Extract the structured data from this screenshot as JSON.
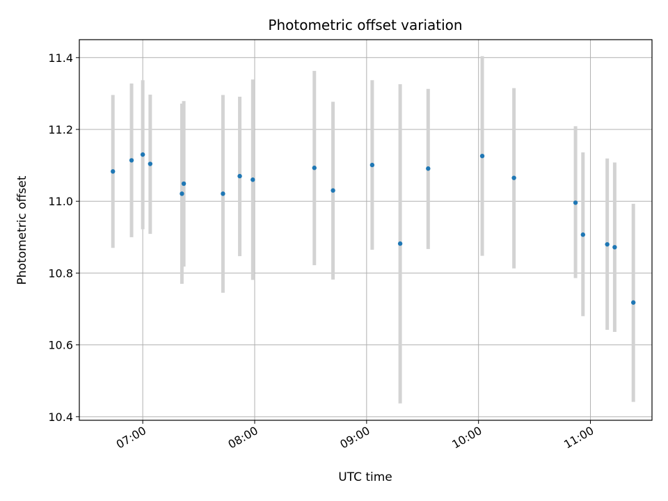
{
  "chart_data": {
    "type": "scatter",
    "title": "Photometric offset variation",
    "xlabel": "UTC time",
    "ylabel": "Photometric offset",
    "xlim": [
      "06:26",
      "11:33"
    ],
    "ylim": [
      10.39,
      11.45
    ],
    "x_ticks": [
      "07:00",
      "08:00",
      "09:00",
      "10:00",
      "11:00"
    ],
    "y_ticks": [
      10.4,
      10.6,
      10.8,
      11.0,
      11.2,
      11.4
    ],
    "y_tick_labels": [
      "10.4",
      "10.6",
      "10.8",
      "11.0",
      "11.2",
      "11.4"
    ],
    "grid": true,
    "colors": {
      "point": "#1f77b4",
      "errorbar": "#d3d3d3",
      "grid": "#b0b0b0"
    },
    "series": [
      {
        "points": [
          {
            "t": "06:44",
            "y": 11.083,
            "ylow": 10.87,
            "yhigh": 11.296
          },
          {
            "t": "06:54",
            "y": 11.114,
            "ylow": 10.9,
            "yhigh": 11.328
          },
          {
            "t": "07:00",
            "y": 11.13,
            "ylow": 10.922,
            "yhigh": 11.337
          },
          {
            "t": "07:04",
            "y": 11.104,
            "ylow": 10.909,
            "yhigh": 11.297
          },
          {
            "t": "07:21",
            "y": 11.021,
            "ylow": 10.77,
            "yhigh": 11.272
          },
          {
            "t": "07:22",
            "y": 11.049,
            "ylow": 10.818,
            "yhigh": 11.279
          },
          {
            "t": "07:43",
            "y": 11.021,
            "ylow": 10.745,
            "yhigh": 11.296
          },
          {
            "t": "07:52",
            "y": 11.07,
            "ylow": 10.847,
            "yhigh": 11.291
          },
          {
            "t": "07:59",
            "y": 11.06,
            "ylow": 10.781,
            "yhigh": 11.339
          },
          {
            "t": "08:32",
            "y": 11.093,
            "ylow": 10.822,
            "yhigh": 11.363
          },
          {
            "t": "08:42",
            "y": 11.03,
            "ylow": 10.782,
            "yhigh": 11.277
          },
          {
            "t": "09:03",
            "y": 11.101,
            "ylow": 10.865,
            "yhigh": 11.337
          },
          {
            "t": "09:18",
            "y": 10.882,
            "ylow": 10.437,
            "yhigh": 11.326
          },
          {
            "t": "09:33",
            "y": 11.091,
            "ylow": 10.867,
            "yhigh": 11.313
          },
          {
            "t": "10:02",
            "y": 11.126,
            "ylow": 10.848,
            "yhigh": 11.404
          },
          {
            "t": "10:19",
            "y": 11.065,
            "ylow": 10.813,
            "yhigh": 11.315
          },
          {
            "t": "10:52",
            "y": 10.996,
            "ylow": 10.786,
            "yhigh": 11.209
          },
          {
            "t": "10:56",
            "y": 10.907,
            "ylow": 10.68,
            "yhigh": 11.136
          },
          {
            "t": "11:09",
            "y": 10.88,
            "ylow": 10.642,
            "yhigh": 11.119
          },
          {
            "t": "11:13",
            "y": 10.872,
            "ylow": 10.636,
            "yhigh": 11.108
          },
          {
            "t": "11:23",
            "y": 10.718,
            "ylow": 10.441,
            "yhigh": 10.993
          }
        ]
      }
    ]
  }
}
